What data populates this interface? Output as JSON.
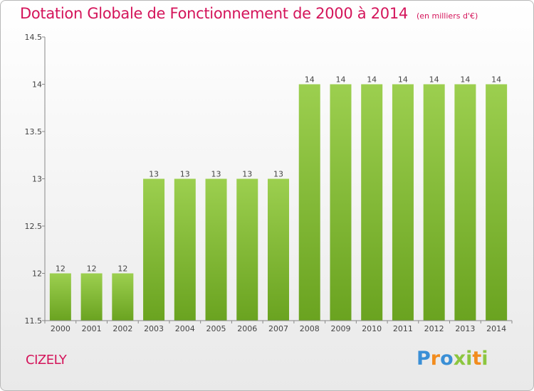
{
  "header": {
    "title": "Dotation Globale de Fonctionnement de 2000 à 2014",
    "subtitle": "(en milliers d'€)"
  },
  "footer": {
    "commune": "CIZELY",
    "logo": [
      "P",
      "r",
      "o",
      "x",
      "i",
      "t",
      "i"
    ]
  },
  "colors": {
    "title": "#d4145a",
    "bar_light": "#9ccf4f",
    "bar_dark": "#6aa320",
    "axis": "#888888"
  },
  "chart_data": {
    "type": "bar",
    "title": "Dotation Globale de Fonctionnement de 2000 à 2014",
    "subtitle": "(en milliers d'€)",
    "categories": [
      "2000",
      "2001",
      "2002",
      "2003",
      "2004",
      "2005",
      "2006",
      "2007",
      "2008",
      "2009",
      "2010",
      "2011",
      "2012",
      "2013",
      "2014"
    ],
    "values": [
      12,
      12,
      12,
      13,
      13,
      13,
      13,
      13,
      14,
      14,
      14,
      14,
      14,
      14,
      14
    ],
    "data_labels": [
      "12",
      "12",
      "12",
      "13",
      "13",
      "13",
      "13",
      "13",
      "14",
      "14",
      "14",
      "14",
      "14",
      "14",
      "14"
    ],
    "ylim": [
      11.5,
      14.5
    ],
    "yticks": [
      11.5,
      12,
      12.5,
      13,
      13.5,
      14,
      14.5
    ],
    "ytick_labels": [
      "11.5",
      "12",
      "12.5",
      "13",
      "13.5",
      "14",
      "14.5"
    ],
    "xlabel": "",
    "ylabel": "",
    "grid": false
  }
}
